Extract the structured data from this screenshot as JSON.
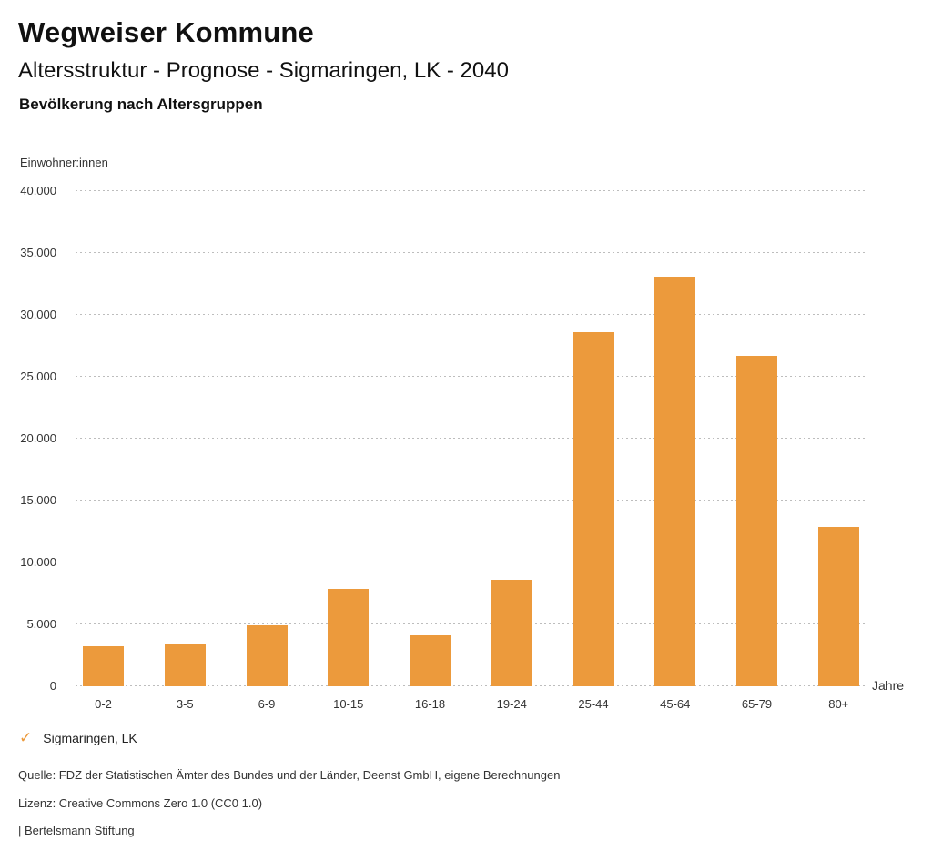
{
  "header": {
    "title": "Wegweiser Kommune",
    "subtitle": "Altersstruktur - Prognose - Sigmaringen, LK - 2040",
    "chart_heading": "Bevölkerung nach Altersgruppen"
  },
  "chart_data": {
    "type": "bar",
    "title": "Bevölkerung nach Altersgruppen",
    "unit_label": "Einwohner:innen",
    "xlabel": "Jahre",
    "categories": [
      "0-2",
      "3-5",
      "6-9",
      "10-15",
      "16-18",
      "19-24",
      "25-44",
      "45-64",
      "65-79",
      "80+"
    ],
    "series": [
      {
        "name": "Sigmaringen, LK",
        "values": [
          3250,
          3400,
          4900,
          7900,
          4100,
          8600,
          28600,
          33100,
          26700,
          12900
        ]
      }
    ],
    "ylim": [
      0,
      40000
    ],
    "ytick_step": 5000,
    "ytick_labels": [
      "0",
      "5.000",
      "10.000",
      "15.000",
      "20.000",
      "25.000",
      "30.000",
      "35.000",
      "40.000"
    ],
    "grid": "horizontal-dotted",
    "legend_position": "bottom-left",
    "bar_color": "#EC9A3C"
  },
  "legend": {
    "check_icon": "✓",
    "label": "Sigmaringen, LK",
    "accent_color": "#EC9A3C"
  },
  "footer": {
    "source": "Quelle: FDZ der Statistischen Ämter des Bundes und der Länder, Deenst GmbH, eigene Berechnungen",
    "license": "Lizenz: Creative Commons Zero 1.0 (CC0 1.0)",
    "attribution": "| Bertelsmann Stiftung"
  }
}
